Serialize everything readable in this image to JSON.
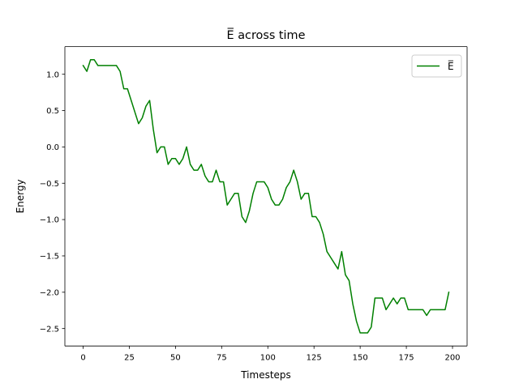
{
  "chart_data": {
    "type": "line",
    "title": "E̅ across time",
    "xlabel": "Timesteps",
    "ylabel": "Energy",
    "xlim": [
      -9.9,
      207.9
    ],
    "ylim": [
      -2.74,
      1.38
    ],
    "xticks": [
      0,
      25,
      50,
      75,
      100,
      125,
      150,
      175,
      200
    ],
    "yticks": [
      1.0,
      0.5,
      0.0,
      -0.5,
      -1.0,
      -1.5,
      -2.0,
      -2.5
    ],
    "xtick_labels": [
      "0",
      "25",
      "50",
      "75",
      "100",
      "125",
      "150",
      "175",
      "200"
    ],
    "ytick_labels": [
      "1.0",
      "0.5",
      "0.0",
      "−0.5",
      "−1.0",
      "−1.5",
      "−2.0",
      "−2.5"
    ],
    "grid": false,
    "legend": {
      "position": "upper right"
    },
    "series": [
      {
        "name": "E̅",
        "color": "#008000",
        "x": [
          0,
          2,
          4,
          6,
          8,
          10,
          12,
          14,
          16,
          18,
          20,
          22,
          24,
          26,
          28,
          30,
          32,
          34,
          36,
          38,
          40,
          42,
          44,
          46,
          48,
          50,
          52,
          54,
          56,
          58,
          60,
          62,
          64,
          66,
          68,
          70,
          72,
          74,
          76,
          78,
          80,
          82,
          84,
          86,
          88,
          90,
          92,
          94,
          96,
          98,
          100,
          102,
          104,
          106,
          108,
          110,
          112,
          114,
          116,
          118,
          120,
          122,
          124,
          126,
          128,
          130,
          132,
          134,
          136,
          138,
          140,
          142,
          144,
          146,
          148,
          150,
          152,
          154,
          156,
          158,
          160,
          162,
          164,
          166,
          168,
          170,
          172,
          174,
          176,
          178,
          180,
          182,
          184,
          186,
          188,
          190,
          192,
          194,
          196,
          198
        ],
        "y": [
          1.12,
          1.04,
          1.2,
          1.2,
          1.12,
          1.12,
          1.12,
          1.12,
          1.12,
          1.12,
          1.04,
          0.8,
          0.8,
          0.64,
          0.48,
          0.32,
          0.4,
          0.56,
          0.64,
          0.24,
          -0.08,
          0.0,
          0.0,
          -0.24,
          -0.16,
          -0.16,
          -0.24,
          -0.16,
          0.0,
          -0.24,
          -0.32,
          -0.32,
          -0.24,
          -0.4,
          -0.48,
          -0.48,
          -0.32,
          -0.48,
          -0.48,
          -0.8,
          -0.72,
          -0.64,
          -0.64,
          -0.96,
          -1.04,
          -0.88,
          -0.64,
          -0.48,
          -0.48,
          -0.48,
          -0.56,
          -0.72,
          -0.8,
          -0.8,
          -0.72,
          -0.56,
          -0.48,
          -0.32,
          -0.48,
          -0.72,
          -0.64,
          -0.64,
          -0.96,
          -0.96,
          -1.04,
          -1.2,
          -1.44,
          -1.52,
          -1.6,
          -1.68,
          -1.44,
          -1.76,
          -1.84,
          -2.16,
          -2.4,
          -2.56,
          -2.56,
          -2.56,
          -2.48,
          -2.08,
          -2.08,
          -2.08,
          -2.24,
          -2.16,
          -2.08,
          -2.16,
          -2.08,
          -2.08,
          -2.24,
          -2.24,
          -2.24,
          -2.24,
          -2.24,
          -2.32,
          -2.24,
          -2.24,
          -2.24,
          -2.24,
          -2.24,
          -2.0
        ]
      }
    ]
  }
}
